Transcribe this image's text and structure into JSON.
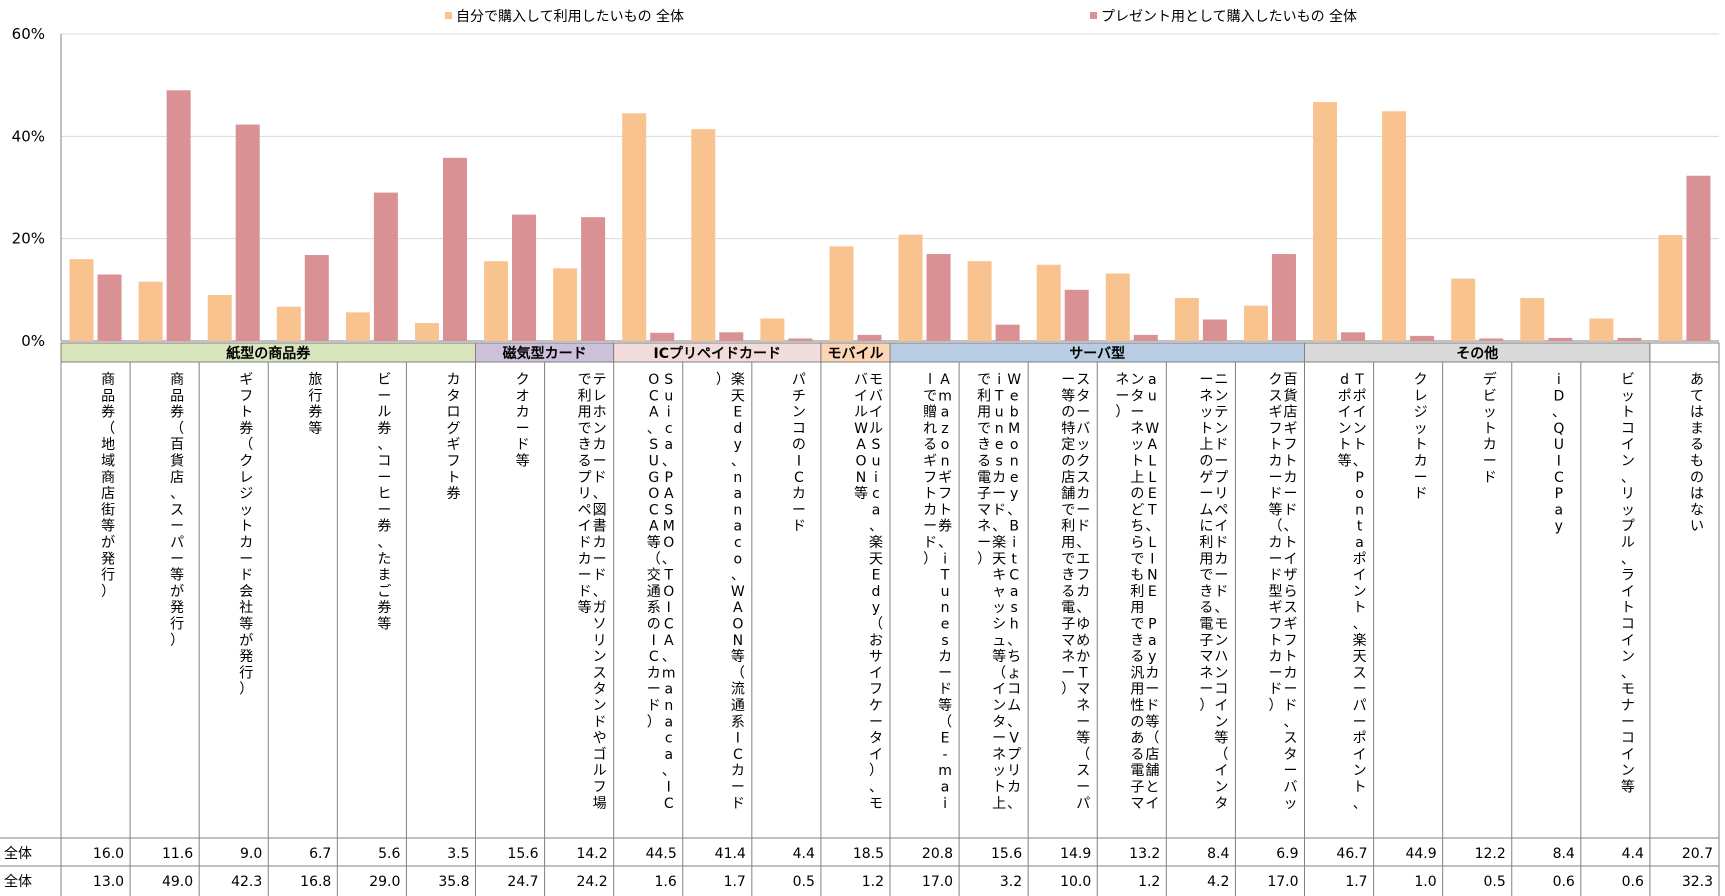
{
  "legend": [
    {
      "label": "自分で購入して利用したいもの 全体",
      "color": "#f8c38f"
    },
    {
      "label": "プレゼント用として購入したいもの 全体",
      "color": "#d99194"
    }
  ],
  "chart_data": {
    "type": "bar",
    "ylim": [
      0,
      60
    ],
    "yticks": [
      "0%",
      "20%",
      "40%",
      "60%"
    ],
    "ytick_values": [
      0,
      20,
      40,
      60
    ],
    "categories": [
      "商品券（地域商店街等が発行）",
      "商品券（百貨店、スーパー等が発行）",
      "ギフト券（クレジットカード会社等が発行）",
      "旅行券等",
      "ビール券、コーヒー券、たまご券等",
      "カタログギフト券",
      "クオカード等",
      "テレホンカード、図書カード、ガソリンスタンドやゴルフ場で利用できるプリペイドカード等",
      "Suica、PASMO、TOICA、manaca、ICOCA、SUGOCA等（交通系のICカード）",
      "楽天Edy、nanaco、WAON等（流通系ICカード）",
      "パチンコのICカード",
      "モバイルSuica、楽天Edy（おサイフケータイ）、モバイルWAON等",
      "Amazonギフト券、iTunesカード等（E-mailで贈れるギフトカード）",
      "WebMoney、BitCash、ちょコム、Vプリカ、iTunesカード、楽天キャッシュ等（インターネット上で利用できる電子マネー）",
      "スターバックスカード、エフカ、ゆめかTマネー等（スーパー等の特定の店舗で利用できる電子マネー）",
      "au WALLET、LINE Payカード等（店舗とインターネット上のどちらでも利用できる汎用性のある電子マネー）",
      "ニンテンドープリペイドカード、モンハンコイン等（インターネット上のゲームに利用できる電子マネー）",
      "百貨店ギフトカード、トイザらスギフトカード、スターバックスギフトカード等（カード型ギフトカード）",
      "Tポイント、Pontaポイント、楽天スーパーポイント、dポイント等",
      "クレジットカード",
      "デビットカード",
      "iD、QUICPay",
      "ビットコイン、リップル、ライトコイン、モナーコイン等",
      "あてはまるものはない"
    ],
    "groups": [
      {
        "label": "紙型の商品券",
        "color": "#d8e4bc",
        "span": 6
      },
      {
        "label": "磁気型カード",
        "color": "#ccc0da",
        "span": 2
      },
      {
        "label": "ICプリペイドカード",
        "color": "#f2dcdb",
        "span": 3
      },
      {
        "label": "モバイル",
        "color": "#fcd5b4",
        "span": 1
      },
      {
        "label": "サーバ型",
        "color": "#b8cce4",
        "span": 6
      },
      {
        "label": "その他",
        "color": "#d9d9d9",
        "span": 5
      },
      {
        "label": "",
        "color": "#ffffff",
        "span": 1
      }
    ],
    "series": [
      {
        "name": "自分で購入して利用したいもの 全体",
        "row_label": "全体",
        "values": [
          16.0,
          11.6,
          9.0,
          6.7,
          5.6,
          3.5,
          15.6,
          14.2,
          44.5,
          41.4,
          4.4,
          18.5,
          20.8,
          15.6,
          14.9,
          13.2,
          8.4,
          6.9,
          46.7,
          44.9,
          12.2,
          8.4,
          4.4,
          20.7
        ]
      },
      {
        "name": "プレゼント用として購入したいもの 全体",
        "row_label": "全体",
        "values": [
          13.0,
          49.0,
          42.3,
          16.8,
          29.0,
          35.8,
          24.7,
          24.2,
          1.6,
          1.7,
          0.5,
          1.2,
          17.0,
          3.2,
          10.0,
          1.2,
          4.2,
          17.0,
          1.7,
          1.0,
          0.5,
          0.6,
          0.6,
          32.3
        ]
      }
    ]
  }
}
